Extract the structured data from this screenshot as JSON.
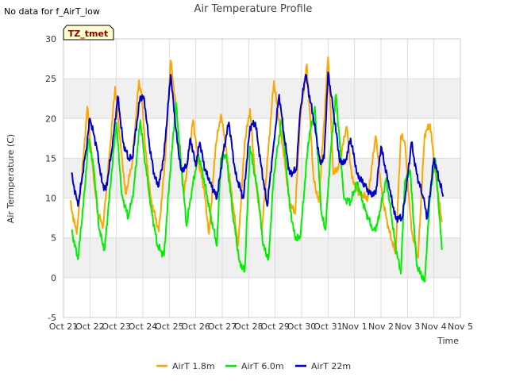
{
  "header": {
    "title": "Air Temperature Profile",
    "no_data_note": "No data for f_AirT_low",
    "tag": "TZ_tmet"
  },
  "colors": {
    "band": "#f0f0f0",
    "grid": "#dcdcdc",
    "series": [
      "#ffa500",
      "#00ee00",
      "#0000cc"
    ],
    "tag_fill": "#ffffcc",
    "tag_text": "#8b0000"
  },
  "chart_data": {
    "type": "line",
    "title": "Air Temperature Profile",
    "xlabel": "Time",
    "ylabel": "Air Termperature (C)",
    "x_ticks": [
      "Oct 21",
      "Oct 22",
      "Oct 23",
      "Oct 24",
      "Oct 25",
      "Oct 26",
      "Oct 27",
      "Oct 28",
      "Oct 29",
      "Oct 30",
      "Oct 31",
      "Nov 1",
      "Nov 2",
      "Nov 3",
      "Nov 4",
      "Nov 5"
    ],
    "x_unit": "days since Oct 21",
    "xlim": [
      0,
      15
    ],
    "ylim": [
      -5,
      30
    ],
    "y_ticks": [
      -5,
      0,
      5,
      10,
      15,
      20,
      25,
      30
    ],
    "grid": true,
    "legend_position": "bottom",
    "series": [
      {
        "name": "AirT 1.8m",
        "x": [
          0.25,
          0.5,
          0.75,
          0.9,
          1.15,
          1.3,
          1.5,
          1.75,
          1.95,
          2.15,
          2.35,
          2.6,
          2.85,
          2.95,
          3.1,
          3.3,
          3.6,
          3.85,
          4.05,
          4.3,
          4.55,
          4.75,
          4.9,
          5.1,
          5.3,
          5.5,
          5.75,
          5.95,
          6.05,
          6.3,
          6.6,
          6.85,
          7.05,
          7.25,
          7.5,
          7.75,
          7.95,
          8.3,
          8.55,
          8.75,
          8.95,
          9.2,
          9.45,
          9.65,
          9.85,
          10.0,
          10.2,
          10.4,
          10.7,
          10.9,
          11.2,
          11.5,
          11.8,
          12.05,
          12.3,
          12.55,
          12.75,
          12.9,
          13.15,
          13.4,
          13.65,
          13.85,
          14.1,
          14.3
        ],
        "values": [
          9.5,
          5.5,
          15.0,
          21.5,
          12.0,
          8.0,
          6.5,
          16.0,
          24.0,
          17.0,
          10.5,
          14.5,
          24.8,
          23.0,
          16.0,
          10.0,
          5.8,
          15.0,
          27.3,
          20.0,
          10.5,
          16.0,
          19.8,
          14.5,
          11.5,
          5.5,
          16.5,
          20.5,
          18.5,
          12.0,
          4.0,
          17.0,
          21.2,
          12.5,
          6.0,
          16.5,
          24.7,
          16.0,
          9.5,
          8.0,
          20.0,
          26.8,
          12.5,
          9.5,
          19.5,
          27.7,
          13.0,
          14.0,
          19.0,
          12.5,
          10.5,
          10.0,
          17.8,
          10.0,
          6.0,
          3.0,
          17.8,
          17.0,
          6.0,
          2.5,
          18.0,
          19.3,
          12.0,
          7.0
        ]
      },
      {
        "name": "AirT 6.0m",
        "x": [
          0.3,
          0.55,
          0.8,
          0.95,
          1.15,
          1.35,
          1.55,
          1.8,
          2.0,
          2.2,
          2.45,
          2.65,
          2.9,
          3.05,
          3.3,
          3.55,
          3.8,
          4.0,
          4.25,
          4.45,
          4.65,
          4.85,
          5.1,
          5.3,
          5.55,
          5.8,
          5.95,
          6.15,
          6.4,
          6.65,
          6.85,
          7.05,
          7.35,
          7.55,
          7.75,
          7.95,
          8.25,
          8.55,
          8.75,
          8.95,
          9.25,
          9.5,
          9.75,
          9.9,
          10.1,
          10.3,
          10.6,
          10.85,
          11.1,
          11.4,
          11.7,
          11.85,
          12.2,
          12.55,
          12.75,
          12.9,
          13.1,
          13.35,
          13.65,
          13.85,
          14.05,
          14.3
        ],
        "values": [
          6.0,
          2.3,
          11.0,
          17.5,
          13.5,
          6.0,
          3.5,
          12.5,
          19.5,
          10.5,
          7.5,
          11.0,
          19.8,
          15.5,
          9.0,
          4.0,
          2.8,
          12.0,
          22.0,
          14.0,
          6.5,
          11.0,
          15.5,
          12.5,
          8.0,
          4.0,
          15.0,
          15.5,
          8.0,
          2.0,
          0.8,
          16.5,
          10.5,
          4.0,
          2.3,
          13.0,
          20.0,
          9.0,
          5.0,
          5.0,
          17.0,
          21.5,
          8.0,
          6.0,
          16.0,
          23.0,
          10.0,
          9.5,
          12.0,
          8.5,
          6.0,
          6.5,
          12.5,
          4.0,
          0.5,
          12.0,
          13.5,
          1.5,
          -0.5,
          10.0,
          15.0,
          3.5
        ]
      },
      {
        "name": "AirT 22m",
        "x": [
          0.3,
          0.55,
          0.85,
          1.0,
          1.25,
          1.45,
          1.6,
          1.85,
          2.05,
          2.25,
          2.45,
          2.6,
          2.9,
          3.05,
          3.25,
          3.45,
          3.6,
          3.8,
          4.05,
          4.3,
          4.45,
          4.65,
          4.8,
          5.0,
          5.15,
          5.35,
          5.55,
          5.8,
          6.05,
          6.25,
          6.5,
          6.8,
          7.05,
          7.25,
          7.45,
          7.7,
          7.95,
          8.15,
          8.35,
          8.55,
          8.8,
          8.95,
          9.15,
          9.45,
          9.7,
          9.85,
          10.0,
          10.2,
          10.45,
          10.65,
          10.85,
          11.1,
          11.4,
          11.6,
          11.8,
          12.0,
          12.3,
          12.55,
          12.8,
          12.95,
          13.15,
          13.35,
          13.6,
          13.75,
          14.0,
          14.35
        ],
        "values": [
          13.0,
          9.0,
          16.0,
          20.0,
          16.5,
          12.0,
          11.0,
          16.5,
          22.8,
          17.0,
          15.0,
          15.0,
          22.8,
          22.5,
          16.5,
          12.5,
          11.5,
          15.5,
          25.5,
          17.0,
          13.5,
          14.0,
          17.5,
          14.0,
          17.0,
          13.5,
          12.0,
          10.0,
          16.0,
          19.5,
          13.0,
          10.0,
          19.0,
          19.5,
          14.5,
          9.0,
          17.0,
          23.0,
          17.5,
          13.0,
          13.5,
          21.0,
          25.5,
          20.0,
          14.5,
          15.0,
          25.8,
          21.0,
          14.5,
          14.5,
          17.5,
          13.0,
          11.5,
          10.5,
          10.5,
          16.5,
          11.5,
          7.5,
          7.5,
          11.0,
          17.0,
          13.0,
          10.0,
          7.5,
          15.0,
          10.2
        ]
      }
    ]
  }
}
